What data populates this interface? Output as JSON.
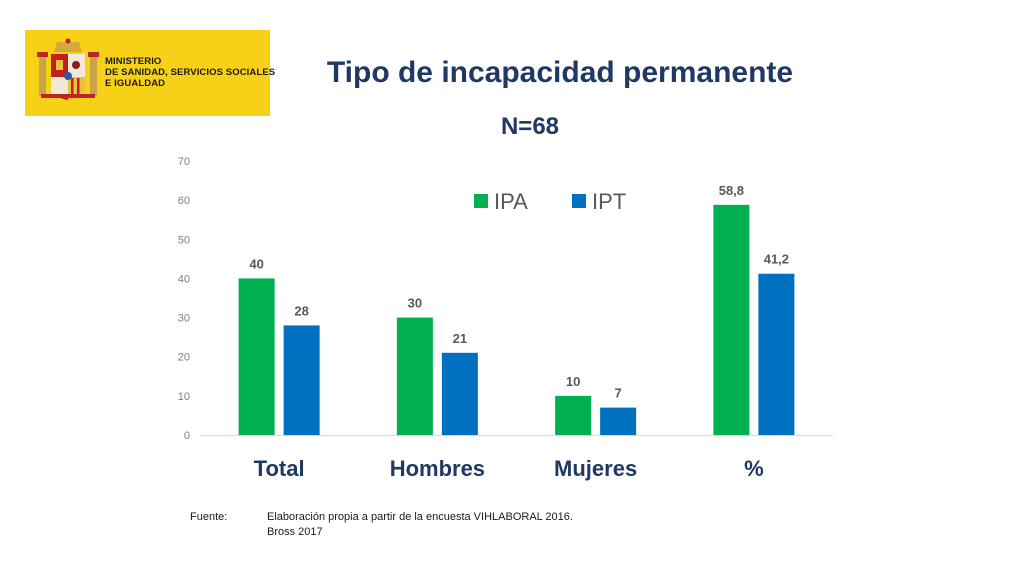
{
  "logo": {
    "lines": [
      "MINISTERIO",
      "DE SANIDAD, SERVICIOS SOCIALES",
      "E IGUALDAD"
    ],
    "background_color": "#f7d117"
  },
  "title": "Tipo de incapacidad permanente",
  "subtitle": "N=68",
  "chart_data": {
    "type": "bar",
    "categories": [
      "Total",
      "Hombres",
      "Mujeres",
      "%"
    ],
    "series": [
      {
        "name": "IPA",
        "color": "#00b050",
        "values": [
          40,
          30,
          10,
          58.8
        ],
        "labels": [
          "40",
          "30",
          "10",
          "58,8"
        ]
      },
      {
        "name": "IPT",
        "color": "#0070c0",
        "values": [
          28,
          21,
          7,
          41.2
        ],
        "labels": [
          "28",
          "21",
          "7",
          "41,2"
        ]
      }
    ],
    "ylim": [
      0,
      70
    ],
    "yticks": [
      0,
      10,
      20,
      30,
      40,
      50,
      60,
      70
    ],
    "grid": false,
    "legend": "top-center"
  },
  "source": {
    "label": "Fuente:",
    "lines": [
      "Elaboración propia a partir de la encuesta  VIHLABORAL 2016.",
      "Bross 2017"
    ]
  }
}
